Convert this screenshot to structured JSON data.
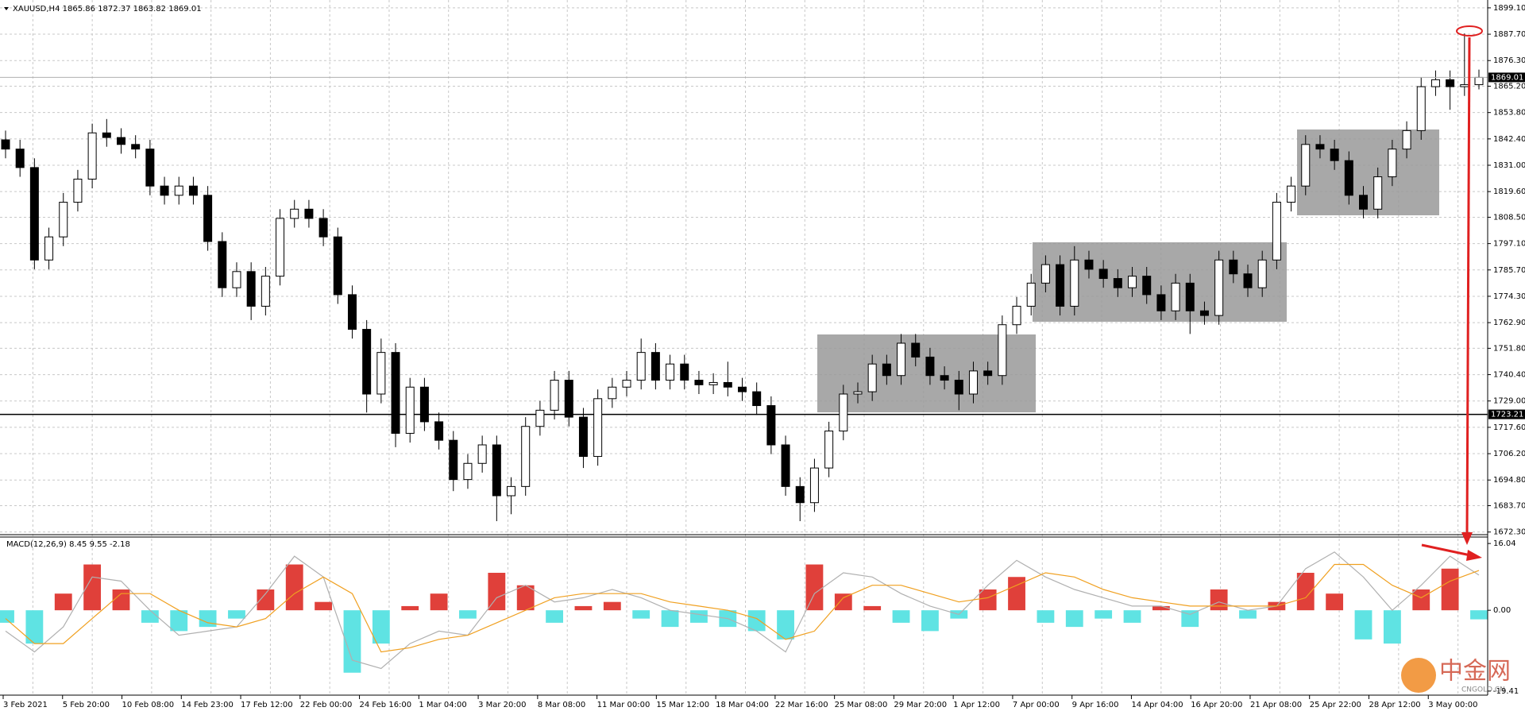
{
  "chart_data": {
    "type": "candlestick",
    "title": "XAUUSD,H4  1865.86 1872.37 1863.82 1869.01",
    "open": [
      1842,
      1838,
      1830,
      1790,
      1800,
      1815,
      1825,
      1845,
      1843,
      1840,
      1838,
      1822,
      1818,
      1822,
      1818,
      1798,
      1778,
      1785,
      1770,
      1783,
      1808,
      1812,
      1808,
      1800,
      1775,
      1760,
      1732,
      1750,
      1715,
      1735,
      1720,
      1712,
      1695,
      1702,
      1710,
      1688,
      1692,
      1718,
      1725,
      1738,
      1722,
      1705,
      1730,
      1735,
      1738,
      1750,
      1738,
      1745,
      1738,
      1736,
      1737,
      1735,
      1733,
      1727,
      1710,
      1692,
      1685,
      1700,
      1716,
      1732,
      1733,
      1745,
      1740,
      1754,
      1748,
      1740,
      1738,
      1732,
      1742,
      1740,
      1762,
      1770,
      1780,
      1788,
      1770,
      1790,
      1786,
      1782,
      1778,
      1783,
      1775,
      1768,
      1780,
      1768,
      1766,
      1790,
      1784,
      1778,
      1790,
      1815,
      1822,
      1840,
      1838,
      1833,
      1818,
      1812,
      1826,
      1838,
      1846,
      1865,
      1868,
      1865,
      1865.86
    ],
    "high": [
      1846,
      1842,
      1834,
      1804,
      1819,
      1829,
      1849,
      1851,
      1847,
      1844,
      1842,
      1826,
      1826,
      1826,
      1822,
      1802,
      1789,
      1789,
      1787,
      1812,
      1816,
      1816,
      1812,
      1804,
      1779,
      1764,
      1756,
      1754,
      1739,
      1739,
      1724,
      1716,
      1706,
      1714,
      1714,
      1696,
      1722,
      1729,
      1742,
      1742,
      1726,
      1734,
      1739,
      1742,
      1756,
      1754,
      1749,
      1749,
      1742,
      1741,
      1746,
      1739,
      1737,
      1731,
      1714,
      1696,
      1704,
      1720,
      1736,
      1737,
      1749,
      1749,
      1758,
      1758,
      1752,
      1744,
      1742,
      1746,
      1746,
      1766,
      1774,
      1784,
      1792,
      1792,
      1796,
      1794,
      1790,
      1786,
      1787,
      1787,
      1779,
      1784,
      1784,
      1772,
      1794,
      1794,
      1788,
      1794,
      1819,
      1826,
      1844,
      1844,
      1842,
      1837,
      1822,
      1830,
      1842,
      1850,
      1869,
      1872,
      1872,
      1888,
      1872.37
    ],
    "low": [
      1834,
      1826,
      1786,
      1786,
      1796,
      1811,
      1821,
      1839,
      1836,
      1834,
      1818,
      1814,
      1814,
      1814,
      1794,
      1774,
      1774,
      1764,
      1766,
      1779,
      1804,
      1804,
      1796,
      1771,
      1756,
      1724,
      1728,
      1709,
      1711,
      1716,
      1708,
      1690,
      1691,
      1698,
      1677,
      1680,
      1688,
      1714,
      1721,
      1718,
      1700,
      1701,
      1726,
      1731,
      1734,
      1734,
      1734,
      1734,
      1732,
      1732,
      1731,
      1729,
      1723,
      1706,
      1688,
      1677,
      1681,
      1696,
      1712,
      1728,
      1729,
      1736,
      1736,
      1744,
      1736,
      1734,
      1725,
      1728,
      1736,
      1736,
      1758,
      1766,
      1776,
      1766,
      1766,
      1782,
      1778,
      1774,
      1774,
      1771,
      1764,
      1764,
      1758,
      1762,
      1762,
      1780,
      1774,
      1774,
      1786,
      1811,
      1818,
      1834,
      1829,
      1814,
      1808,
      1808,
      1822,
      1834,
      1842,
      1861,
      1855,
      1861,
      1863.82
    ],
    "close": [
      1838,
      1830,
      1790,
      1800,
      1815,
      1825,
      1845,
      1843,
      1840,
      1838,
      1822,
      1818,
      1822,
      1818,
      1798,
      1778,
      1785,
      1770,
      1783,
      1808,
      1812,
      1808,
      1800,
      1775,
      1760,
      1732,
      1750,
      1715,
      1735,
      1720,
      1712,
      1695,
      1702,
      1710,
      1688,
      1692,
      1718,
      1725,
      1738,
      1722,
      1705,
      1730,
      1735,
      1738,
      1750,
      1738,
      1745,
      1738,
      1736,
      1737,
      1735,
      1733,
      1727,
      1710,
      1692,
      1685,
      1700,
      1716,
      1732,
      1733,
      1745,
      1740,
      1754,
      1748,
      1740,
      1738,
      1732,
      1742,
      1740,
      1762,
      1770,
      1780,
      1788,
      1770,
      1790,
      1786,
      1782,
      1778,
      1783,
      1775,
      1768,
      1780,
      1768,
      1766,
      1790,
      1784,
      1778,
      1790,
      1815,
      1822,
      1840,
      1838,
      1833,
      1818,
      1812,
      1826,
      1838,
      1846,
      1865,
      1868,
      1865,
      1865.86,
      1869.01
    ],
    "ylim": [
      1671.5,
      1902.5
    ],
    "yticks": [
      {
        "value": 1899.1,
        "label": "1899.10"
      },
      {
        "value": 1887.7,
        "label": "1887.70"
      },
      {
        "value": 1876.3,
        "label": "1876.30"
      },
      {
        "value": 1865.2,
        "label": "1865.20"
      },
      {
        "value": 1853.8,
        "label": "1853.80"
      },
      {
        "value": 1842.4,
        "label": "1842.40"
      },
      {
        "value": 1831,
        "label": "1831.00"
      },
      {
        "value": 1819.6,
        "label": "1819.60"
      },
      {
        "value": 1808.5,
        "label": "1808.50"
      },
      {
        "value": 1797.1,
        "label": "1797.10"
      },
      {
        "value": 1785.7,
        "label": "1785.70"
      },
      {
        "value": 1774.3,
        "label": "1774.30"
      },
      {
        "value": 1762.9,
        "label": "1762.90"
      },
      {
        "value": 1751.8,
        "label": "1751.80"
      },
      {
        "value": 1740.4,
        "label": "1740.40"
      },
      {
        "value": 1729,
        "label": "1729.00"
      },
      {
        "value": 1717.6,
        "label": "1717.60"
      },
      {
        "value": 1706.2,
        "label": "1706.20"
      },
      {
        "value": 1694.8,
        "label": "1694.80"
      },
      {
        "value": 1683.7,
        "label": "1683.70"
      },
      {
        "value": 1672.3,
        "label": "1672.30"
      }
    ],
    "hline": 1723.21,
    "grid": true,
    "x_labels": [
      "3 Feb 2021",
      "5 Feb 20:00",
      "10 Feb 08:00",
      "14 Feb 23:00",
      "17 Feb 12:00",
      "22 Feb 00:00",
      "24 Feb 16:00",
      "1 Mar 04:00",
      "3 Mar 20:00",
      "8 Mar 08:00",
      "11 Mar 00:00",
      "15 Mar 12:00",
      "18 Mar 04:00",
      "22 Mar 16:00",
      "25 Mar 08:00",
      "29 Mar 20:00",
      "1 Apr 12:00",
      "7 Apr 00:00",
      "9 Apr 16:00",
      "14 Apr 04:00",
      "16 Apr 20:00",
      "21 Apr 08:00",
      "25 Apr 22:00",
      "28 Apr 12:00",
      "3 May 00:00"
    ],
    "macd": {
      "title": "MACD(12,26,9) 8.45 9.55 -2.18",
      "ylim": [
        -20.2,
        17.4
      ],
      "yticks": [
        16.04,
        {
          "value": 0,
          "label": "0.00"
        },
        -19.41
      ],
      "up_color": "#e0403a",
      "down_color": "#5fe3e3",
      "histogram": [
        -3,
        -8,
        4,
        11,
        5,
        -3,
        -5,
        -4,
        -2,
        5,
        11,
        2,
        -15,
        -8,
        1,
        4,
        -2,
        9,
        6,
        -3,
        1,
        2,
        -2,
        -4,
        -3,
        -4,
        -5,
        -7,
        11,
        4,
        1,
        -3,
        -5,
        -2,
        5,
        8,
        -3,
        -4,
        -2,
        -3,
        1,
        -4,
        5,
        -2,
        2,
        9,
        4,
        -7,
        -8,
        5,
        10,
        -2.18
      ],
      "series": [
        {
          "color": "#b0b0b0",
          "values": [
            -5,
            -10,
            -4,
            8,
            7,
            0,
            -6,
            -5,
            -4,
            4,
            13,
            8,
            -12,
            -14,
            -8,
            -5,
            -6,
            3,
            6,
            2,
            3,
            5,
            3,
            0,
            -1,
            -2,
            -5,
            -10,
            4,
            9,
            8,
            4,
            1,
            -1,
            6,
            12,
            8,
            5,
            3,
            1,
            1,
            -1,
            2,
            0,
            1,
            10,
            14,
            8,
            0,
            6,
            13,
            8.45
          ]
        },
        {
          "color": "#f0a020",
          "values": [
            -2,
            -8,
            -8,
            -2,
            4,
            4,
            0,
            -3,
            -4,
            -2,
            4,
            8,
            4,
            -10,
            -9,
            -7,
            -6,
            -3,
            0,
            3,
            4,
            4,
            4,
            2,
            1,
            0,
            -2,
            -7,
            -5,
            3,
            6,
            6,
            4,
            2,
            3,
            6,
            9,
            8,
            5,
            3,
            2,
            1,
            1,
            1,
            1,
            3,
            11,
            11,
            6,
            3,
            7,
            9.55
          ]
        }
      ]
    }
  },
  "watermark": {
    "text": "中金网",
    "sub": "CNGOLD.CN"
  }
}
